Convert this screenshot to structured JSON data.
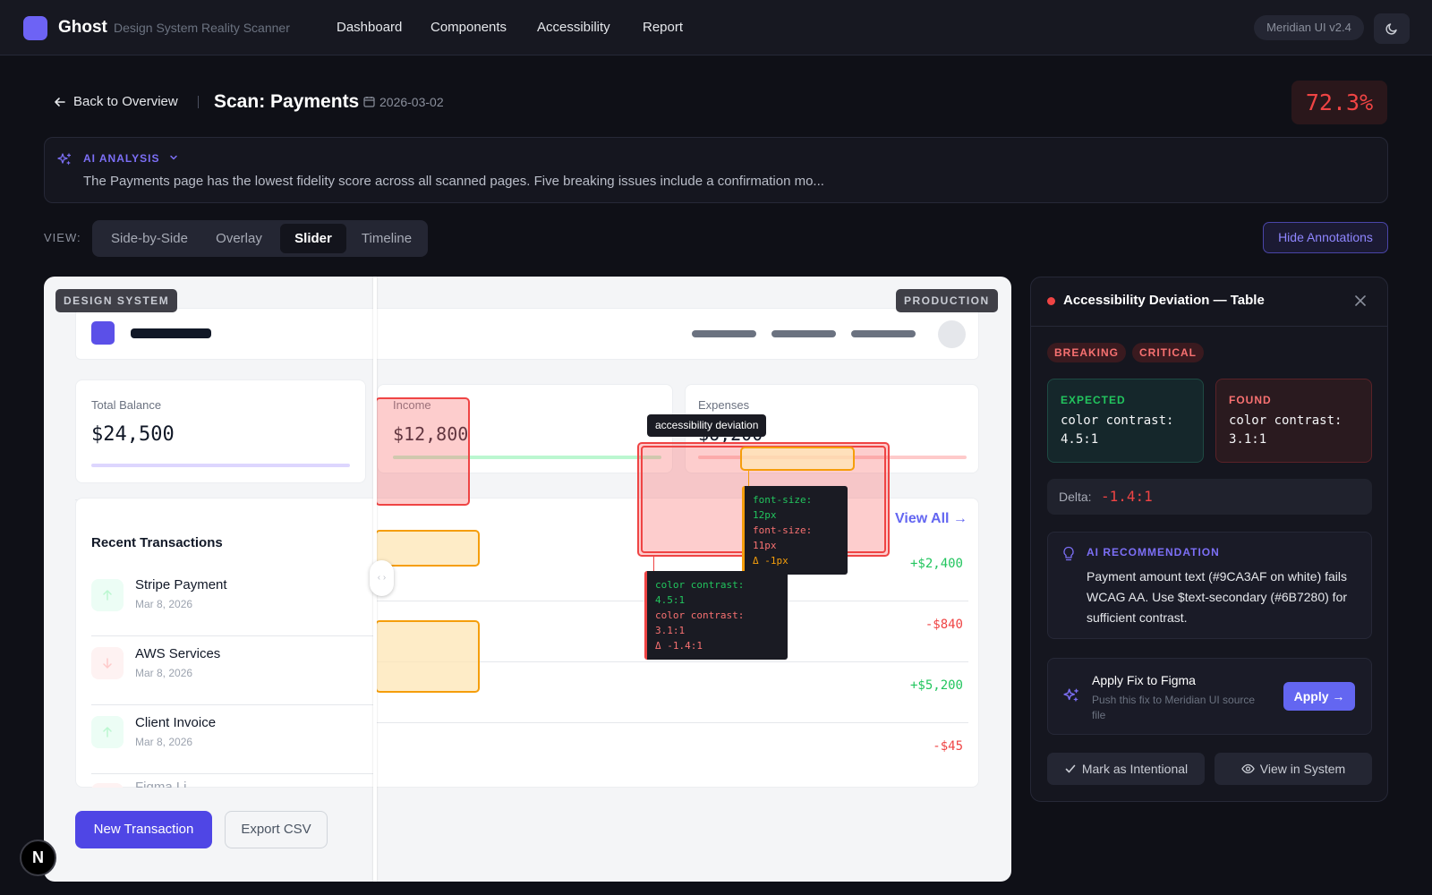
{
  "app": {
    "brand": "Ghost",
    "subtitle": "Design System Reality Scanner",
    "nav": [
      "Dashboard",
      "Components",
      "Accessibility",
      "Report"
    ],
    "version": "Meridian UI v2.4"
  },
  "header": {
    "back_label": "Back to Overview",
    "title": "Scan: Payments",
    "date": "2026-03-02",
    "score": "72.3%"
  },
  "ai_analysis": {
    "label": "AI ANALYSIS",
    "text": "The Payments page has the lowest fidelity score across all scanned pages. Five breaking issues include a confirmation mo..."
  },
  "view": {
    "label": "VIEW:",
    "options": [
      "Side-by-Side",
      "Overlay",
      "Slider",
      "Timeline"
    ],
    "active": "Slider",
    "hide_annotations": "Hide Annotations"
  },
  "canvas": {
    "design_tag": "DESIGN SYSTEM",
    "production_tag": "PRODUCTION",
    "total_balance_label": "Total Balance",
    "total_balance": "$24,500",
    "income_label": "Income",
    "income": "$12,800",
    "expenses_label": "Expenses",
    "expenses_partial": "$6,200",
    "recent_transactions": "Recent Transactions",
    "view_all": "View All →",
    "transactions": [
      {
        "name": "Stripe Payment",
        "date": "Mar 8, 2026",
        "amount": "+$2,400",
        "type": "in"
      },
      {
        "name": "AWS Services",
        "date": "Mar 8, 2026",
        "amount": "-$840",
        "type": "out"
      },
      {
        "name": "Client Invoice",
        "date": "Mar 8, 2026",
        "amount": "+$5,200",
        "type": "in"
      },
      {
        "name": "Figma Li...",
        "date": "",
        "amount": "-$45",
        "type": "out"
      }
    ],
    "annotation_label": "accessibility deviation",
    "tooltip_font": [
      "font-size: 12px",
      "font-size: 11px",
      "Δ -1px"
    ],
    "tooltip_contrast": [
      "color contrast: 4.5:1",
      "color contrast: 3.1:1",
      "Δ -1.4:1"
    ],
    "new_transaction": "New Transaction",
    "export_csv": "Export CSV"
  },
  "panel": {
    "title": "Accessibility Deviation — Table",
    "badges": [
      "BREAKING",
      "CRITICAL"
    ],
    "expected_label": "EXPECTED",
    "expected_value": "color contrast: 4.5:1",
    "found_label": "FOUND",
    "found_value": "color contrast: 3.1:1",
    "delta_label": "Delta:",
    "delta_value": "-1.4:1",
    "rec_label": "AI RECOMMENDATION",
    "rec_text": "Payment amount text (#9CA3AF on white) fails WCAG AA. Use $text-secondary (#6B7280) for sufficient contrast.",
    "fix_title": "Apply Fix to Figma",
    "fix_sub": "Push this fix to Meridian UI source file",
    "apply": "Apply →",
    "mark_intentional": "Mark as Intentional",
    "view_in_system": "View in System"
  },
  "n_badge": "N",
  "colors": {
    "accent": "#6366f1",
    "breaking": "#ef4444",
    "positive": "#22c55e",
    "warning": "#f59e0b"
  }
}
